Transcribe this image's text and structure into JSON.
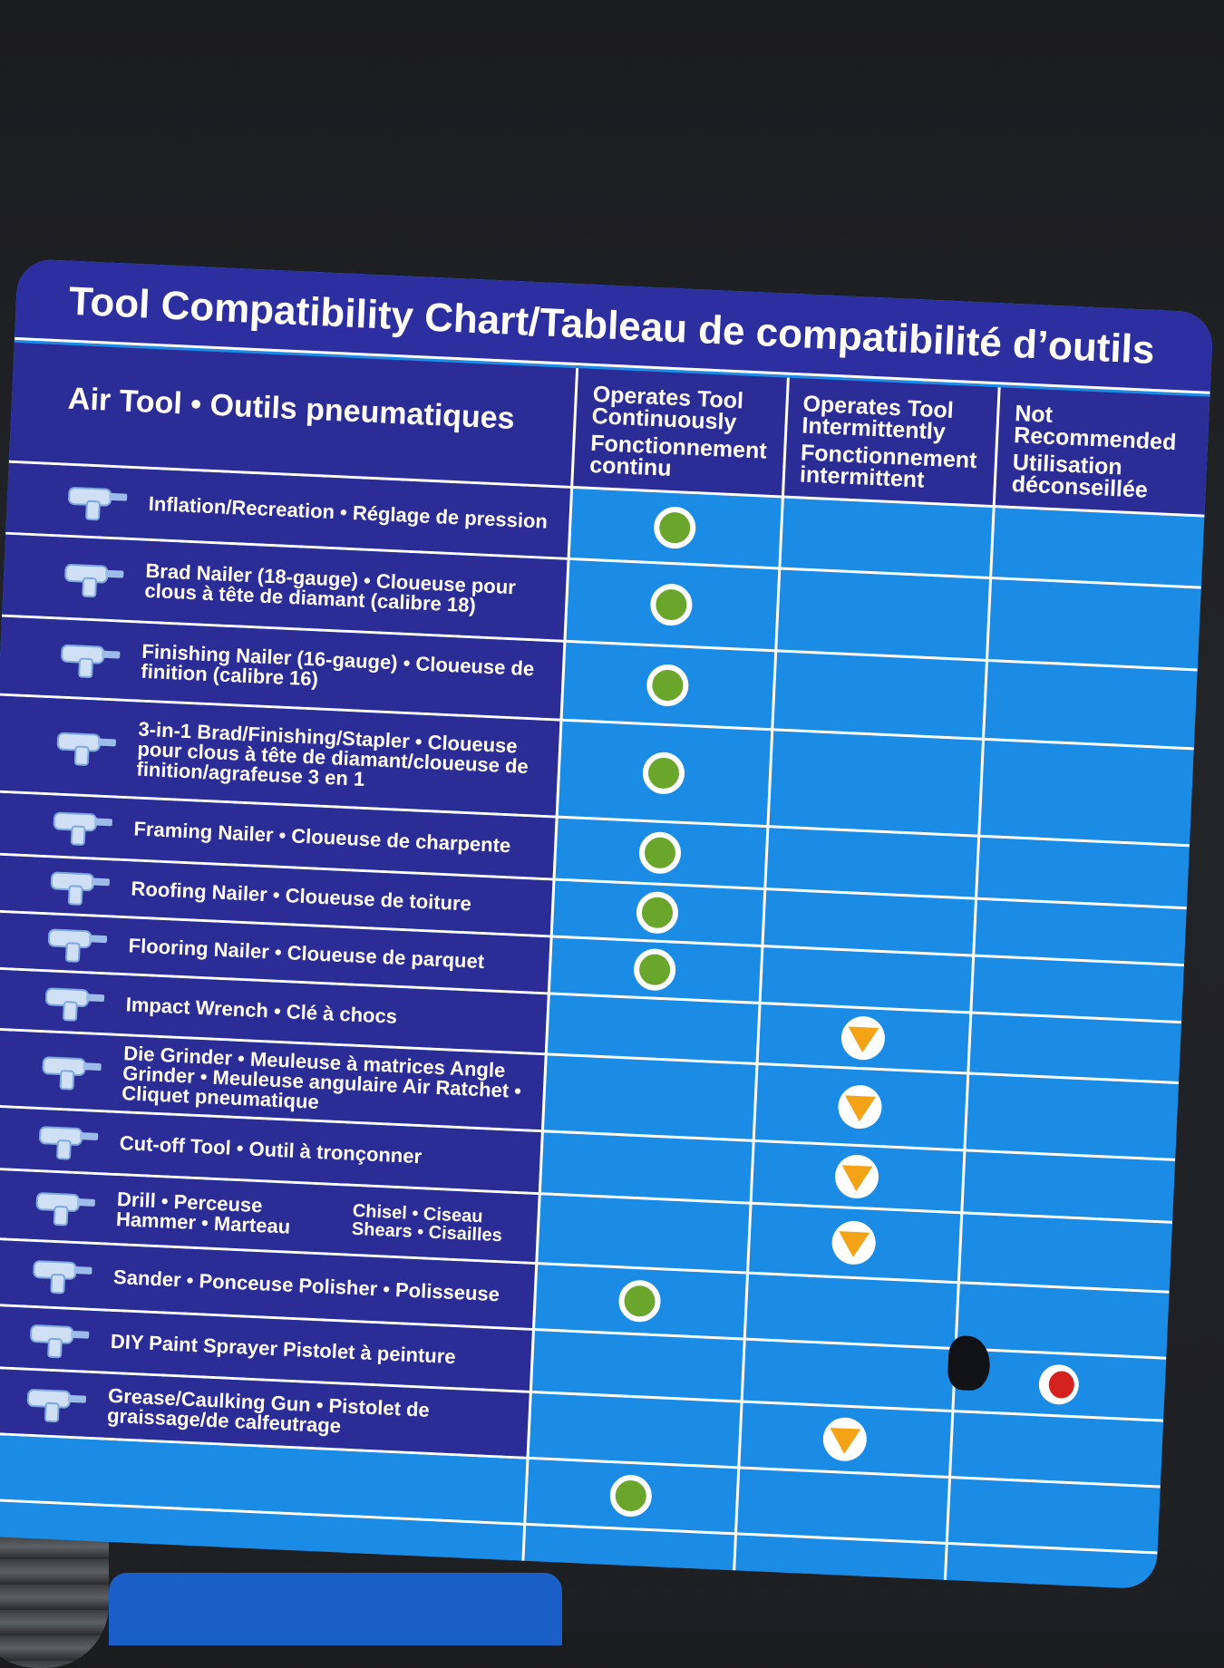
{
  "chart": {
    "title": "Tool Compatibility Chart/Tableau de compatibilité d’outils",
    "column_headers": {
      "tool": "Air Tool • Outils pneumatiques",
      "continuous": [
        "Operates Tool",
        "Continuously",
        "Fonctionnement",
        "continu"
      ],
      "intermittent": [
        "Operates Tool",
        "Intermittently",
        "Fonctionnement",
        "intermittent"
      ],
      "not_recommended": [
        "Not",
        "Recommended",
        "Utilisation",
        "déconseillée"
      ]
    },
    "rows": [
      {
        "label": "Inflation/Recreation • Réglage de pression",
        "label2": "",
        "icon": "inflation-nozzle-icon",
        "rating": "continuous",
        "height": 76
      },
      {
        "label": "Brad Nailer (18-gauge) • Cloueuse pour clous à tête de diamant (calibre 18)",
        "label2": "",
        "icon": "brad-nailer-icon",
        "rating": "continuous",
        "height": 88
      },
      {
        "label": "Finishing Nailer  (16-gauge) • Cloueuse de finition (calibre 16)",
        "label2": "",
        "icon": "finishing-nailer-icon",
        "rating": "continuous",
        "height": 84
      },
      {
        "label": "3-in-1 Brad/Finishing/Stapler • Cloueuse pour clous à tête de diamant/cloueuse de finition/agrafeuse 3 en 1",
        "label2": "",
        "icon": "stapler-icon",
        "rating": "continuous",
        "height": 104
      },
      {
        "label": "Framing Nailer • Cloueuse de charpente",
        "label2": "",
        "icon": "framing-nailer-icon",
        "rating": "continuous",
        "height": 66
      },
      {
        "label": "Roofing Nailer • Cloueuse de toiture",
        "label2": "",
        "icon": "roofing-nailer-icon",
        "rating": "continuous",
        "height": 60
      },
      {
        "label": "Flooring Nailer • Cloueuse de parquet",
        "label2": "",
        "icon": "flooring-nailer-icon",
        "rating": "continuous",
        "height": 60
      },
      {
        "label": "Impact Wrench • Clé à chocs",
        "label2": "",
        "icon": "impact-wrench-icon",
        "rating": "intermittent",
        "height": 64
      },
      {
        "label": "Die Grinder • Meuleuse à matrices Angle Grinder • Meuleuse angulaire Air Ratchet • Cliquet pneumatique",
        "label2": "",
        "icon": "grinder-icon",
        "rating": "intermittent",
        "height": 82
      },
      {
        "label": "Cut-off Tool • Outil à tronçonner",
        "label2": "",
        "icon": "cutoff-tool-icon",
        "rating": "intermittent",
        "height": 66
      },
      {
        "label": "Drill • Perceuse Hammer • Marteau",
        "label2": "Chisel • Ciseau Shears • Cisailles",
        "icon": "drill-icon",
        "rating": "intermittent",
        "height": 74
      },
      {
        "label": "Sander • Ponceuse Polisher • Polisseuse",
        "label2": "",
        "icon": "sander-icon",
        "rating": "continuous",
        "height": 70
      },
      {
        "label": "DIY Paint Sprayer Pistolet à peinture",
        "label2": "",
        "icon": "paint-sprayer-icon",
        "rating": "not_recommended",
        "height": 66
      },
      {
        "label": "Grease/Caulking Gun • Pistolet de graissage/de calfeutrage",
        "label2": "",
        "icon": "grease-gun-icon",
        "rating": "intermittent",
        "height": 70
      }
    ],
    "extra_mark": "continuous",
    "colors": {
      "title_bg": "#2d2fa0",
      "tool_col_bg": "#2b2c96",
      "rating_bg": "#1a8ce6",
      "continuous": "#6aa62b",
      "intermittent": "#f4a316",
      "not_recommended": "#d5221f"
    }
  }
}
